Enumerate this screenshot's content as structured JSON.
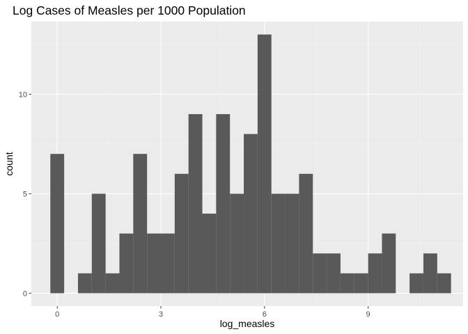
{
  "chart_data": {
    "type": "bar",
    "title": "Log Cases of Measles per 1000 Population",
    "xlabel": "log_measles",
    "ylabel": "count",
    "xlim": [
      -0.75,
      11.75
    ],
    "ylim": [
      -0.65,
      13.65
    ],
    "bin_width": 0.4,
    "x_ticks": [
      0,
      3,
      6,
      9
    ],
    "x_tick_labels": [
      "0",
      "3",
      "6",
      "9"
    ],
    "y_ticks": [
      0,
      5,
      10
    ],
    "y_tick_labels": [
      "0",
      "5",
      "10"
    ],
    "bins": [
      {
        "x_start": -0.2,
        "count": 7
      },
      {
        "x_start": 0.2,
        "count": 0
      },
      {
        "x_start": 0.6,
        "count": 1
      },
      {
        "x_start": 1.0,
        "count": 5
      },
      {
        "x_start": 1.4,
        "count": 1
      },
      {
        "x_start": 1.8,
        "count": 3
      },
      {
        "x_start": 2.2,
        "count": 7
      },
      {
        "x_start": 2.6,
        "count": 3
      },
      {
        "x_start": 3.0,
        "count": 3
      },
      {
        "x_start": 3.4,
        "count": 6
      },
      {
        "x_start": 3.8,
        "count": 9
      },
      {
        "x_start": 4.2,
        "count": 4
      },
      {
        "x_start": 4.6,
        "count": 9
      },
      {
        "x_start": 5.0,
        "count": 5
      },
      {
        "x_start": 5.4,
        "count": 8
      },
      {
        "x_start": 5.8,
        "count": 13
      },
      {
        "x_start": 6.2,
        "count": 5
      },
      {
        "x_start": 6.6,
        "count": 5
      },
      {
        "x_start": 7.0,
        "count": 6
      },
      {
        "x_start": 7.4,
        "count": 2
      },
      {
        "x_start": 7.8,
        "count": 2
      },
      {
        "x_start": 8.2,
        "count": 1
      },
      {
        "x_start": 8.6,
        "count": 1
      },
      {
        "x_start": 9.0,
        "count": 2
      },
      {
        "x_start": 9.4,
        "count": 3
      },
      {
        "x_start": 9.8,
        "count": 0
      },
      {
        "x_start": 10.2,
        "count": 1
      },
      {
        "x_start": 10.6,
        "count": 2
      },
      {
        "x_start": 11.0,
        "count": 1
      }
    ],
    "grid": true,
    "legend": "none",
    "colors": {
      "bar_fill": "#595959",
      "panel_background": "#ebebeb",
      "grid_major": "#ffffff",
      "grid_minor": "#f5f5f5",
      "tick_mark": "#333333",
      "tick_label": "#4d4d4d"
    }
  }
}
